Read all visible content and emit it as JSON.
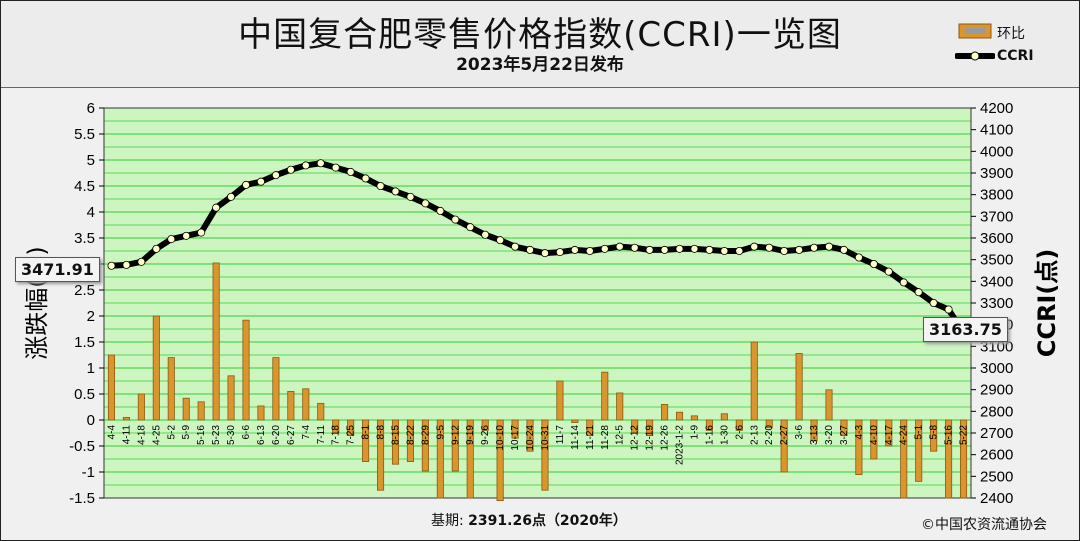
{
  "header": {
    "title": "中国复合肥零售价格指数(CCRI)一览图",
    "subtitle": "2023年5月22日发布"
  },
  "legend": {
    "items": [
      {
        "label": "环比",
        "icon": "bar-swatch-icon"
      },
      {
        "label": "CCRI",
        "icon": "line-dot-icon"
      }
    ]
  },
  "footer": {
    "base_label": "基期:",
    "base_value": "2391.26点（2020年）",
    "copyright": "©中国农资流通协会"
  },
  "callouts": {
    "first": "3471.91",
    "last": "3163.75"
  },
  "colors": {
    "plot_bg": "#ccf5c0",
    "grid": "#33cc33",
    "bar": "#d9952e",
    "bar_edge": "#8a5a10",
    "line": "#000000",
    "marker_fill": "#ffffcc"
  },
  "chart_data": {
    "type": "bar+line",
    "categories": [
      "4-4",
      "4-11",
      "4-18",
      "4-25",
      "5-2",
      "5-9",
      "5-16",
      "5-23",
      "5-30",
      "6-6",
      "6-13",
      "6-20",
      "6-27",
      "7-4",
      "7-11",
      "7-18",
      "7-25",
      "8-1",
      "8-8",
      "8-15",
      "8-22",
      "8-29",
      "9-5",
      "9-12",
      "9-19",
      "9-26",
      "10-10",
      "10-17",
      "10-24",
      "10-31",
      "11-7",
      "11-14",
      "11-21",
      "11-28",
      "12-5",
      "12-12",
      "12-19",
      "12-26",
      "2023-1-2",
      "1-9",
      "1-16",
      "1-30",
      "2-6",
      "2-13",
      "2-20",
      "2-27",
      "3-6",
      "3-13",
      "3-20",
      "3-27",
      "4-3",
      "4-10",
      "4-17",
      "4-24",
      "5-1",
      "5-8",
      "5-16",
      "5-22"
    ],
    "series": [
      {
        "name": "环比",
        "type": "bar",
        "axis": "left",
        "values": [
          1.25,
          0.05,
          0.5,
          2.0,
          1.2,
          0.42,
          0.35,
          3.02,
          0.85,
          1.92,
          0.27,
          1.2,
          0.55,
          0.6,
          0.32,
          -0.25,
          -0.3,
          -0.8,
          -1.35,
          -0.85,
          -0.8,
          -0.98,
          -1.5,
          -0.98,
          -1.5,
          -0.2,
          -1.55,
          -0.35,
          -0.6,
          -1.35,
          0.75,
          -0.05,
          -0.3,
          0.92,
          0.52,
          -0.25,
          -0.3,
          0.3,
          0.15,
          0.08,
          -0.2,
          0.12,
          -0.2,
          1.5,
          -0.15,
          -1.0,
          1.28,
          -0.4,
          0.58,
          -0.3,
          -1.05,
          -0.75,
          -0.5,
          -1.5,
          -1.18,
          -0.6,
          -1.5,
          -1.5
        ]
      },
      {
        "name": "CCRI",
        "type": "line",
        "axis": "right",
        "values": [
          3471.91,
          3476,
          3490,
          3550,
          3595,
          3610,
          3625,
          3740,
          3790,
          3845,
          3860,
          3890,
          3915,
          3935,
          3945,
          3925,
          3905,
          3875,
          3840,
          3815,
          3790,
          3760,
          3725,
          3685,
          3650,
          3615,
          3590,
          3560,
          3545,
          3530,
          3535,
          3545,
          3540,
          3550,
          3560,
          3555,
          3545,
          3545,
          3550,
          3550,
          3545,
          3540,
          3540,
          3560,
          3555,
          3540,
          3545,
          3555,
          3560,
          3545,
          3510,
          3480,
          3445,
          3395,
          3350,
          3300,
          3270,
          3163.75
        ]
      }
    ],
    "y_left": {
      "label": "涨跌幅(%)",
      "range": [
        -1.5,
        6
      ],
      "ticks": [
        "6",
        "5.5",
        "5",
        "4.5",
        "4",
        "3.5",
        "3",
        "2.5",
        "2",
        "1.5",
        "1",
        "0.5",
        "0",
        "-0.5",
        "-1",
        "-1.5"
      ]
    },
    "y_right": {
      "label": "CCRI(点)",
      "range": [
        2400,
        4200
      ],
      "ticks": [
        "4200",
        "4100",
        "4000",
        "3900",
        "3800",
        "3700",
        "3600",
        "3500",
        "3400",
        "3300",
        "3200",
        "3100",
        "3000",
        "2900",
        "2800",
        "2700",
        "2600",
        "2500",
        "2400"
      ]
    },
    "grid": true,
    "legend_position": "top-right"
  }
}
